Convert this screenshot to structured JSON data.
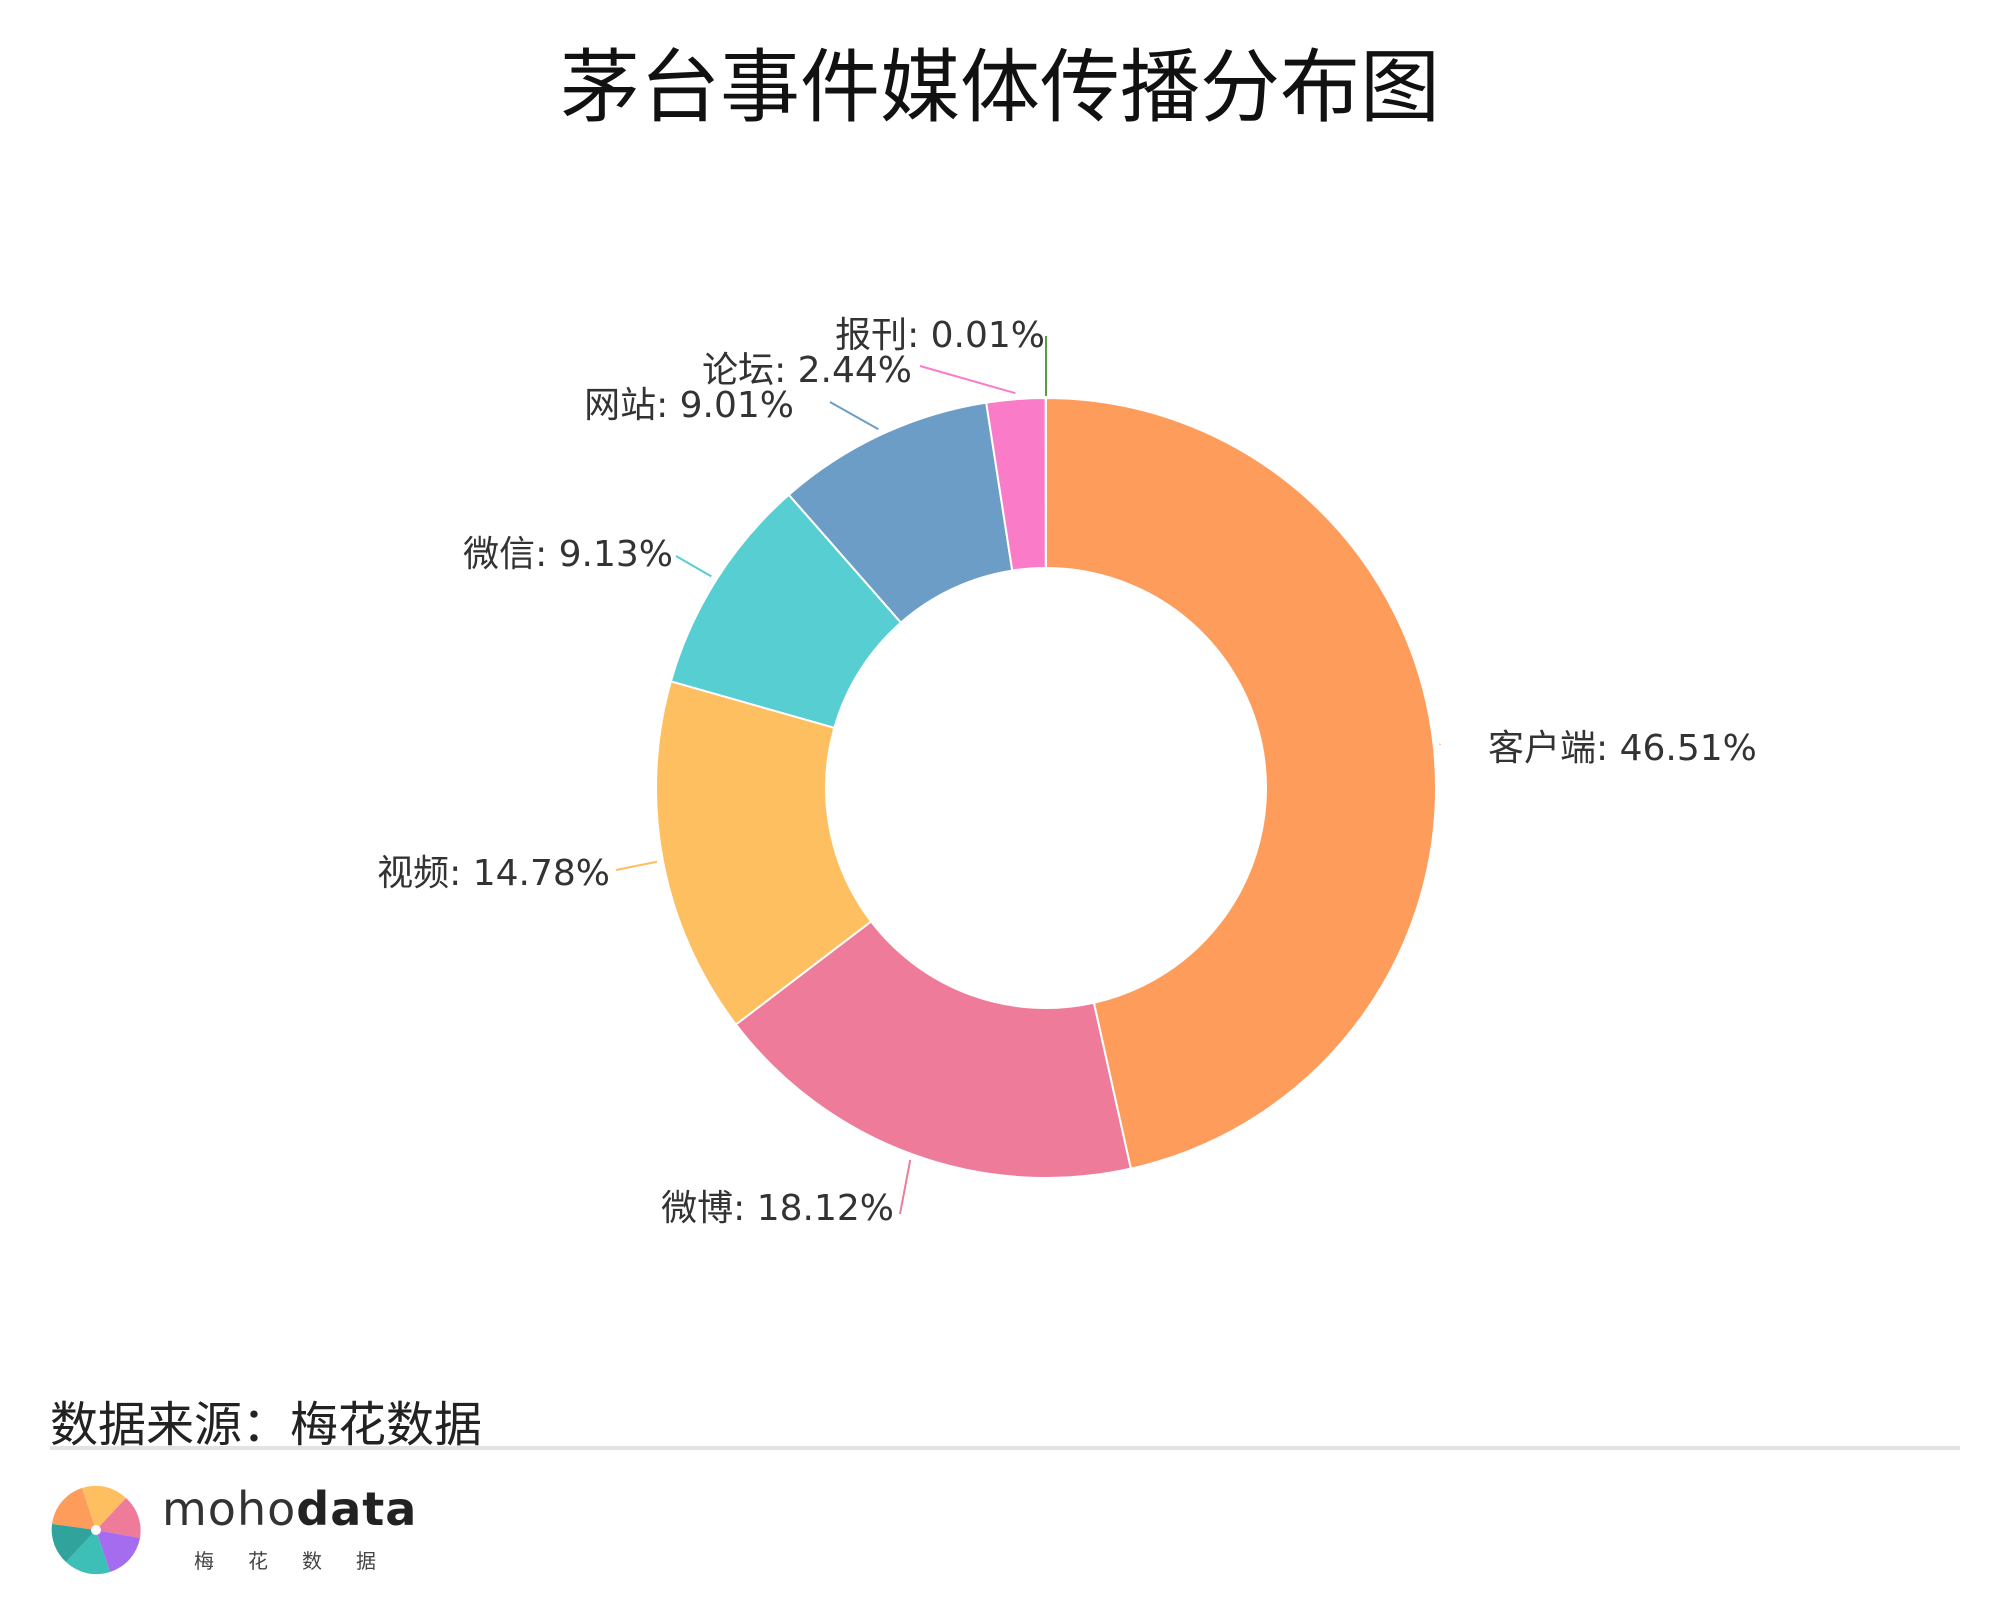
{
  "title": "茅台事件媒体传播分布图",
  "source": "数据来源：梅花数据",
  "brand": {
    "name_light": "moho",
    "name_bold": "data",
    "subtitle": "梅花数据"
  },
  "chart_data": {
    "type": "pie",
    "variant": "donut",
    "title": "茅台事件媒体传播分布图",
    "slices": [
      {
        "label": "客户端",
        "value": 46.51,
        "display": "客户端: 46.51%",
        "color": "#fe9c5c"
      },
      {
        "label": "微博",
        "value": 18.12,
        "display": "微博: 18.12%",
        "color": "#ee7b99"
      },
      {
        "label": "视频",
        "value": 14.78,
        "display": "视频: 14.78%",
        "color": "#fdbf5f"
      },
      {
        "label": "微信",
        "value": 9.13,
        "display": "微信: 9.13%",
        "color": "#57cfd2"
      },
      {
        "label": "网站",
        "value": 9.01,
        "display": "网站: 9.01%",
        "color": "#6c9dc6"
      },
      {
        "label": "论坛",
        "value": 2.44,
        "display": "论坛: 2.44%",
        "color": "#fa7bc7"
      },
      {
        "label": "报刊",
        "value": 0.01,
        "display": "报刊: 0.01%",
        "color": "#5c9a44"
      }
    ],
    "direction": "clockwise",
    "start_angle": "top",
    "legend": "none"
  }
}
